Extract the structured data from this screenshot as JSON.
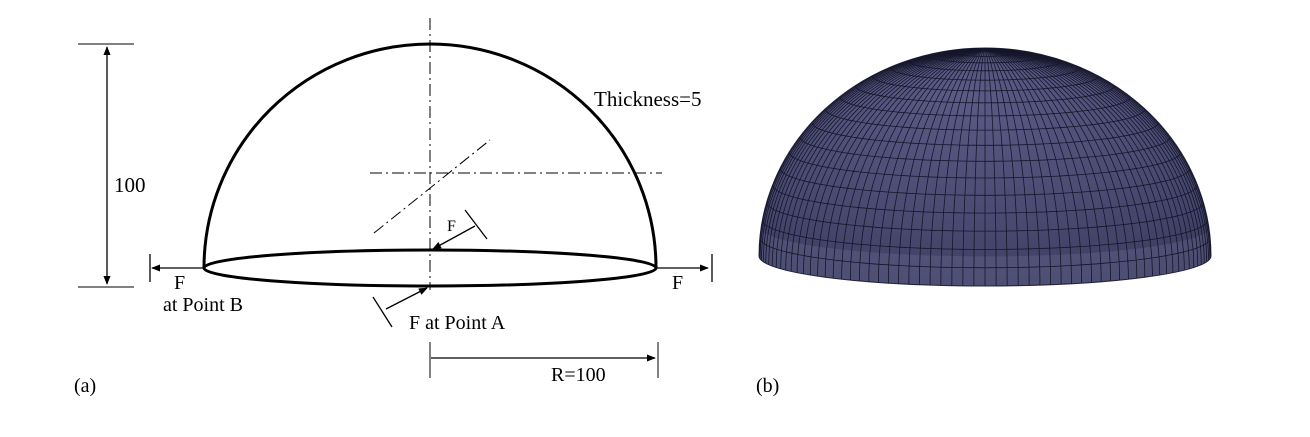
{
  "panel_a": {
    "label": "(a)",
    "height_dim": "100",
    "thickness": "Thickness=5",
    "radius_dim": "R=100",
    "force_left": "F",
    "force_right": "F",
    "force_inner": "F",
    "point_b": "at Point B",
    "point_a": "F at Point A"
  },
  "panel_b": {
    "label": "(b)"
  },
  "colors": {
    "line": "#000000",
    "dome_fill": "#48496e",
    "dome_mesh": "#15162a"
  }
}
